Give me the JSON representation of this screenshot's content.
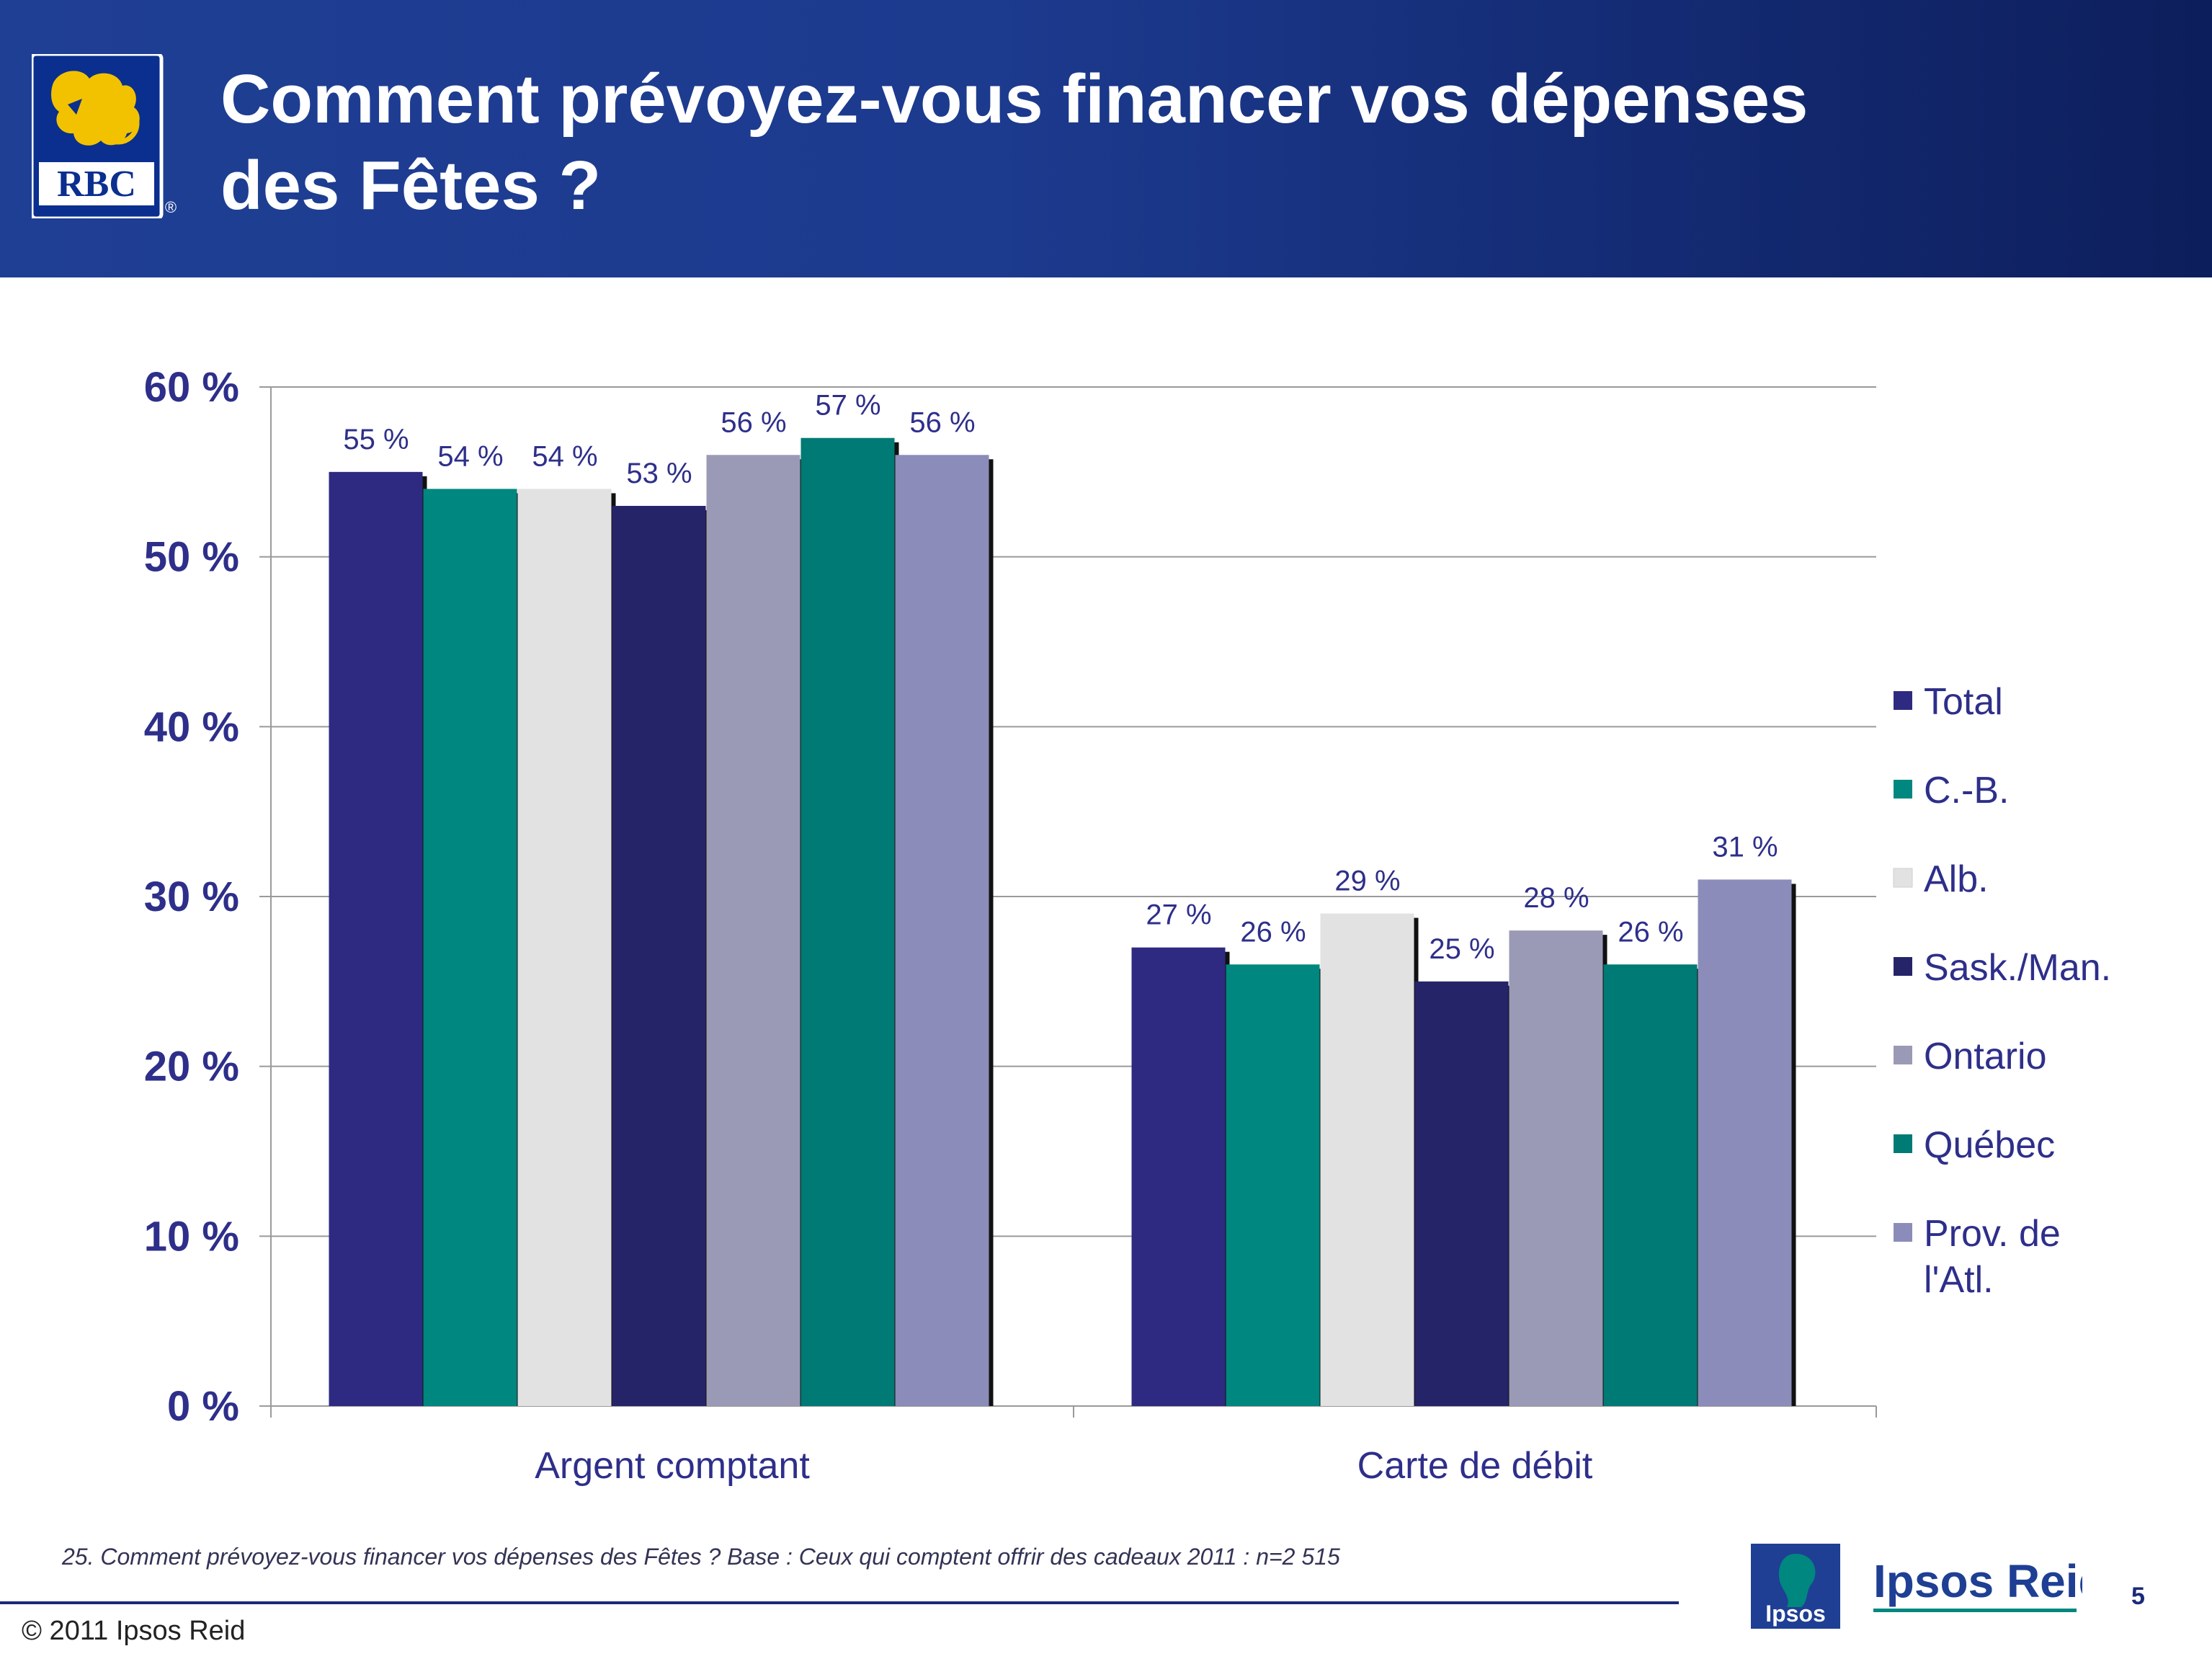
{
  "header": {
    "title_line1": "Comment prévoyez-vous financer vos dépenses",
    "title_line2": "des Fêtes ?",
    "logo_text": "RBC",
    "logo_mark": "®"
  },
  "chart_data": {
    "type": "bar",
    "categories": [
      "Argent comptant",
      "Carte de débit"
    ],
    "series": [
      {
        "name": "Total",
        "color": "#2e2a82",
        "values": [
          55,
          27
        ],
        "labels": [
          "55 %",
          "27 %"
        ]
      },
      {
        "name": "C.-B.",
        "color": "#00877f",
        "values": [
          54,
          26
        ],
        "labels": [
          "54 %",
          "26 %"
        ]
      },
      {
        "name": "Alb.",
        "color": "#e2e2e2",
        "values": [
          54,
          29
        ],
        "labels": [
          "54 %",
          "29 %"
        ]
      },
      {
        "name": "Sask./Man.",
        "color": "#262469",
        "values": [
          53,
          25
        ],
        "labels": [
          "53 %",
          "25 %"
        ]
      },
      {
        "name": "Ontario",
        "color": "#9a9ab6",
        "values": [
          56,
          28
        ],
        "labels": [
          "56 %",
          "28 %"
        ]
      },
      {
        "name": "Québec",
        "color": "#007a74",
        "values": [
          57,
          26
        ],
        "labels": [
          "57 %",
          "26 %"
        ]
      },
      {
        "name": "Prov. de l'Atl.",
        "color": "#8c8cba",
        "values": [
          56,
          31
        ],
        "labels": [
          "56 %",
          "31 %"
        ]
      }
    ],
    "legend_lines": [
      [
        "Total"
      ],
      [
        "C.-B."
      ],
      [
        "Alb."
      ],
      [
        "Sask./Man."
      ],
      [
        "Ontario"
      ],
      [
        "Québec"
      ],
      [
        "Prov. de",
        "l'Atl."
      ]
    ],
    "ylim": [
      0,
      60
    ],
    "yticks": [
      0,
      10,
      20,
      30,
      40,
      50,
      60
    ],
    "ytick_labels": [
      "0 %",
      "10 %",
      "20 %",
      "30 %",
      "40 %",
      "50 %",
      "60 %"
    ],
    "grid": true,
    "legend_position": "right",
    "title": "",
    "xlabel": "",
    "ylabel": ""
  },
  "footer": {
    "footnote": "25. Comment prévoyez-vous financer vos dépenses des Fêtes ?  Base : Ceux qui comptent offrir des cadeaux 2011 : n=2 515",
    "copyright": "© 2011 Ipsos Reid",
    "brand_small": "Ipsos",
    "brand_large": "Ipsos Reid",
    "page_number": "5"
  }
}
